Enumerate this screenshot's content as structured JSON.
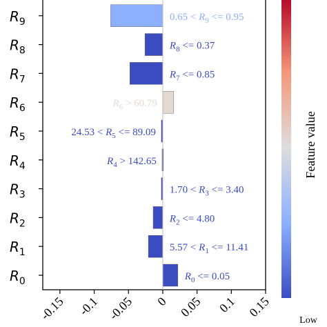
{
  "chart_data": {
    "type": "bar",
    "orientation": "horizontal",
    "categories": [
      "R0",
      "R1",
      "R2",
      "R3",
      "R4",
      "R5",
      "R6",
      "R7",
      "R8",
      "R9"
    ],
    "values": [
      0.022,
      -0.021,
      -0.014,
      -0.002,
      -0.001,
      -0.002,
      0.016,
      -0.048,
      -0.026,
      -0.076
    ],
    "bar_labels": [
      "R0 <= 0.05",
      "5.57 < R1 <= 11.41",
      "R2 <= 4.80",
      "1.70 < R3 <= 3.40",
      "R4 > 142.65",
      "24.53 < R5 <= 89.09",
      "R6 > 60.79",
      "R7 <= 0.85",
      "R8 <= 0.37",
      "0.65 < R9 <= 0.95"
    ],
    "label_side": [
      "right",
      "right",
      "right",
      "right",
      "left",
      "left",
      "left",
      "right",
      "right",
      "right"
    ],
    "bar_colors": [
      "#3b4cc0",
      "#3b4cc0",
      "#3b4cc0",
      "#3b4cc0",
      "#3b4cc0",
      "#3b4cc0",
      "#e5d8d1",
      "#3b4cc0",
      "#3b4cc0",
      "#8db0fe"
    ],
    "label_colors": [
      "#3b4cc0",
      "#3b4cc0",
      "#3b4cc0",
      "#3b4cc0",
      "#3b4cc0",
      "#3b4cc0",
      "#e5d8d1",
      "#3b4cc0",
      "#3b4cc0",
      "#8db0fe"
    ],
    "xticks": [
      -0.15,
      -0.1,
      -0.05,
      0,
      0.05,
      0.1,
      0.15
    ],
    "xtick_labels": [
      "-0.15",
      "-0.1",
      "-0.05",
      "0",
      "0.05",
      "0.1",
      "0.15"
    ],
    "xlim": [
      -0.175,
      0.15
    ],
    "colorbar": {
      "label": "Feature value",
      "low_label": "Low",
      "colormap": "coolwarm",
      "stops": [
        "#3b4cc0",
        "#8db0fe",
        "#dddddd",
        "#f4987a",
        "#b40426"
      ]
    }
  }
}
